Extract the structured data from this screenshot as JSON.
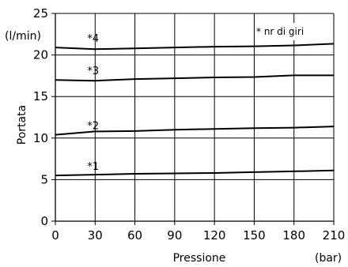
{
  "chart_data": {
    "type": "line",
    "xlabel": "Pressione",
    "ylabel": "Portata",
    "xunit": "(bar)",
    "yunit": "(l/min)",
    "annotation": "* nr di giri",
    "xlim": [
      0,
      210
    ],
    "ylim": [
      0,
      25
    ],
    "xticks": [
      "0",
      "30",
      "60",
      "90",
      "120",
      "150",
      "180",
      "210"
    ],
    "yticks": [
      "0",
      "5",
      "10",
      "15",
      "20",
      "25"
    ],
    "grid": true,
    "series": [
      {
        "name": "*1",
        "x": [
          0,
          30,
          60,
          90,
          120,
          150,
          180,
          210
        ],
        "y": [
          5.5,
          5.6,
          5.7,
          5.75,
          5.8,
          5.9,
          6.0,
          6.1
        ]
      },
      {
        "name": "*2",
        "x": [
          0,
          30,
          60,
          90,
          120,
          150,
          180,
          210
        ],
        "y": [
          10.4,
          10.8,
          10.85,
          11.0,
          11.1,
          11.2,
          11.25,
          11.4
        ]
      },
      {
        "name": "*3",
        "x": [
          0,
          30,
          60,
          90,
          120,
          150,
          180,
          210
        ],
        "y": [
          17.0,
          16.9,
          17.1,
          17.2,
          17.3,
          17.35,
          17.55,
          17.55
        ]
      },
      {
        "name": "*4",
        "x": [
          0,
          30,
          60,
          90,
          120,
          150,
          180,
          210
        ],
        "y": [
          20.9,
          20.7,
          20.8,
          20.9,
          21.0,
          21.05,
          21.15,
          21.35
        ]
      }
    ]
  }
}
